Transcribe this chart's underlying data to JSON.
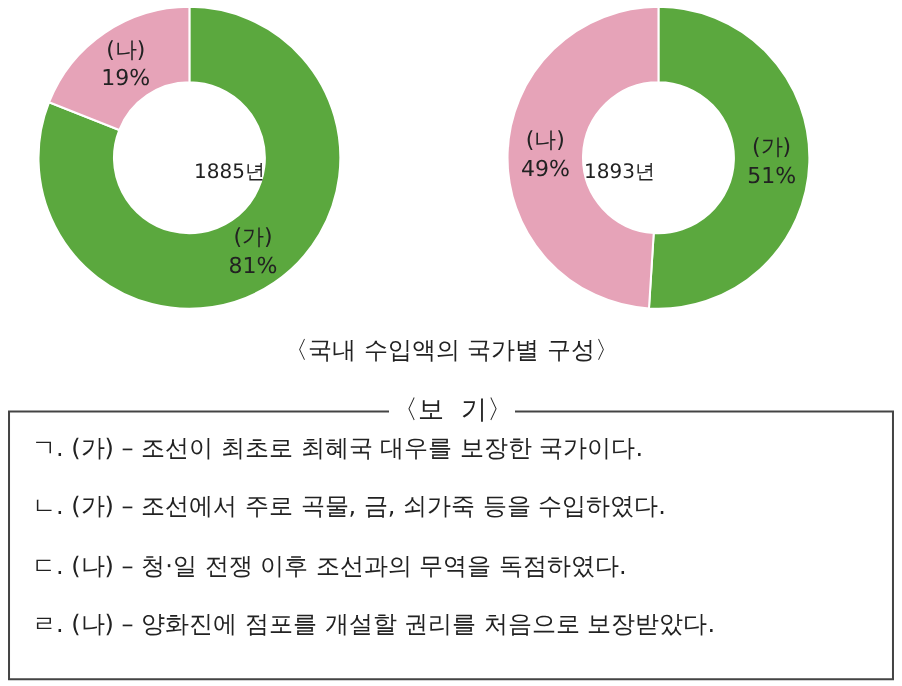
{
  "chart_data": [
    {
      "type": "donut",
      "categories": [
        "(가)",
        "(나)"
      ],
      "values": [
        81,
        19
      ],
      "value_labels": [
        "81%",
        "19%"
      ],
      "colors": [
        "#5ba83e",
        "#e6a3b8"
      ],
      "annotations": [
        "1885년",
        "〈국내 수입액의 국가별 구성〉"
      ]
    },
    {
      "type": "donut",
      "categories": [
        "(가)",
        "(나)"
      ],
      "values": [
        51,
        49
      ],
      "value_labels": [
        "51%",
        "49%"
      ],
      "colors": [
        "#5ba83e",
        "#e6a3b8"
      ],
      "annotations": [
        "1893년"
      ]
    },
    {
      "type": "other",
      "title": "〈보  기〉",
      "annotations": [
        "ㄱ. (가) – 조선이 최초로 최혜국 대우를 보장한 국가이다.",
        "ㄴ. (가) – 조선에서 주로 곡물, 금, 쇠가죽 등을 수입하였다.",
        "ㄷ. (나) – 청·일 전쟁 이후 조선과의 무역을 독점하였다.",
        "ㄹ. (나) – 양화진에 점포를 개설할 권리를 처음으로 보장받았다."
      ]
    }
  ]
}
